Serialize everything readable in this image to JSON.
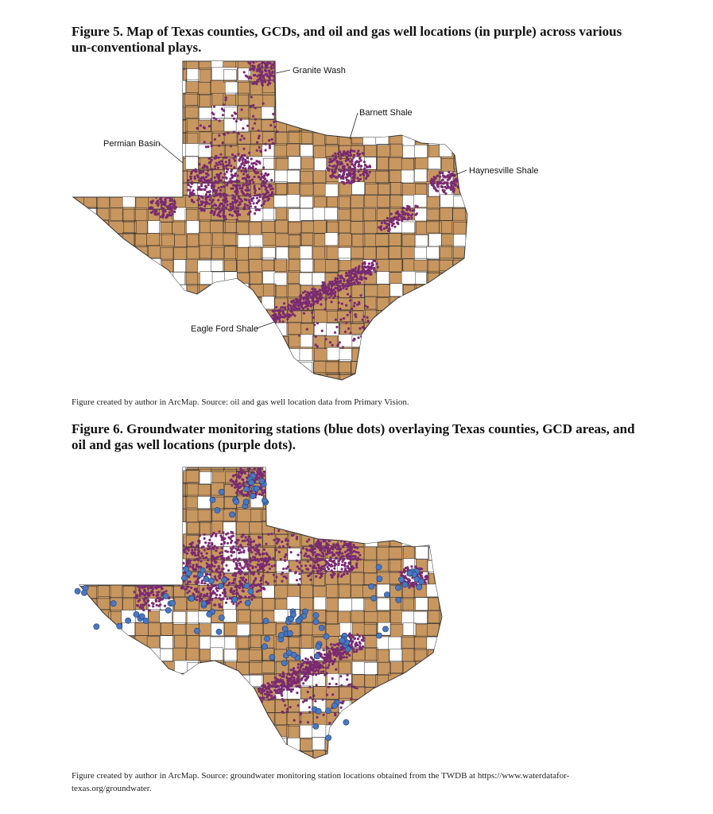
{
  "figure5": {
    "title": "Figure 5. Map of Texas counties, GCDs, and oil and gas well locations (in purple) across various un-conventional plays.",
    "labels": {
      "granite_wash": "Granite Wash",
      "barnett_shale": "Barnett Shale",
      "permian_basin": "Permian Basin",
      "haynesville_shale": "Haynesville Shale",
      "eagle_ford_shale": "Eagle Ford Shale"
    },
    "caption": "Figure created by author in ArcMap. Source: oil and gas well location data from Primary Vision."
  },
  "figure6": {
    "title": "Figure 6. Groundwater monitoring stations (blue dots) overlaying Texas counties, GCD areas, and oil and gas well locations (purple dots).",
    "caption": "Figure created by author in ArcMap. Source: groundwater monitoring station locations obtained from the TWDB at https://www.waterdatafor-texas.org/groundwater."
  },
  "colors": {
    "gcd_fill": "#c8965f",
    "county_fill": "#ffffff",
    "county_border": "#333333",
    "well_dot": "#7a2a72",
    "station_dot": "#4a78c2"
  }
}
